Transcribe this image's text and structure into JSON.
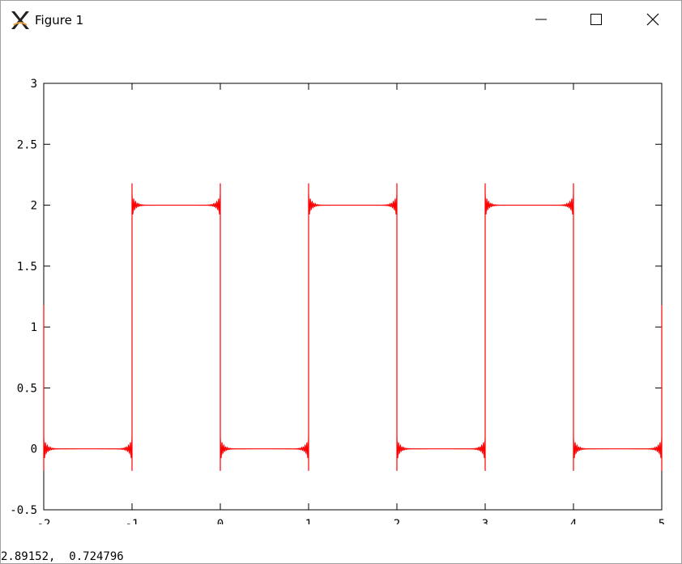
{
  "window": {
    "title": "Figure 1",
    "icons": {
      "app": "x11-icon",
      "minimize": "minimize-icon",
      "maximize": "maximize-icon",
      "close": "close-icon"
    }
  },
  "status": {
    "coordinates": "2.89152,  0.724796"
  },
  "chart_data": {
    "type": "line",
    "title": "",
    "xlabel": "",
    "ylabel": "",
    "xlim": [
      -2,
      5
    ],
    "ylim": [
      -0.5,
      3
    ],
    "xticks": [
      "-2",
      "-1",
      "0",
      "1",
      "2",
      "3",
      "4",
      "5"
    ],
    "yticks": [
      "-0.5",
      "0",
      "0.5",
      "1",
      "1.5",
      "2",
      "2.5",
      "3"
    ],
    "grid": false,
    "line_color": "#ff0000",
    "series": [
      {
        "x": [
          -2,
          -2,
          -1,
          -1,
          0,
          0,
          1,
          1,
          2,
          2,
          3,
          3,
          4,
          4,
          5,
          5
        ],
        "y": [
          1,
          0,
          0,
          2,
          2,
          0,
          0,
          2,
          2,
          0,
          0,
          2,
          2,
          0,
          0,
          1
        ]
      }
    ],
    "gibbs_overshoot": 0.18
  }
}
